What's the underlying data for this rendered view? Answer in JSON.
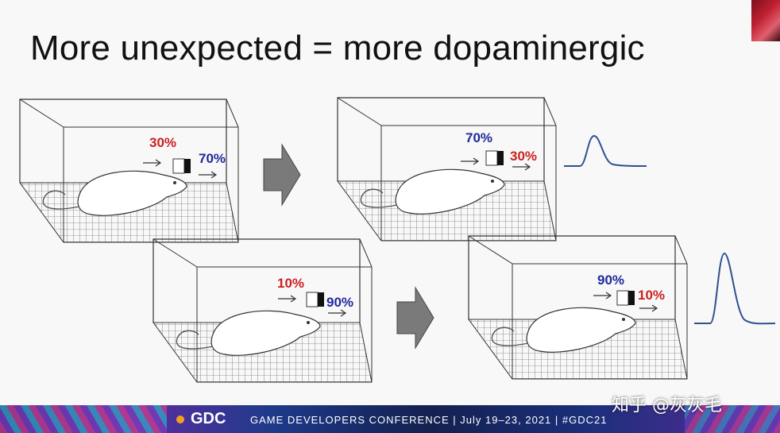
{
  "slide": {
    "title": "More unexpected = more dopaminergic"
  },
  "panels": {
    "top_left": {
      "left_label": "30%",
      "right_label": "70%"
    },
    "top_right": {
      "left_label": "70%",
      "right_label": "30%"
    },
    "bottom_left": {
      "left_label": "10%",
      "right_label": "90%"
    },
    "bottom_right": {
      "left_label": "90%",
      "right_label": "10%"
    }
  },
  "colors": {
    "red_label": "#cc1f1f",
    "blue_label": "#1f2a9a",
    "curve": "#2f4f8f",
    "arrow": "#7a7a7a"
  },
  "footer": {
    "logo": "GDC",
    "conference": "GAME DEVELOPERS CONFERENCE  |  July 19–23, 2021  |  #GDC21"
  },
  "watermark": "知乎 @灰灰毛",
  "icons": [
    "right-arrow-icon",
    "dopamine-small-peak-icon",
    "dopamine-large-peak-icon"
  ]
}
